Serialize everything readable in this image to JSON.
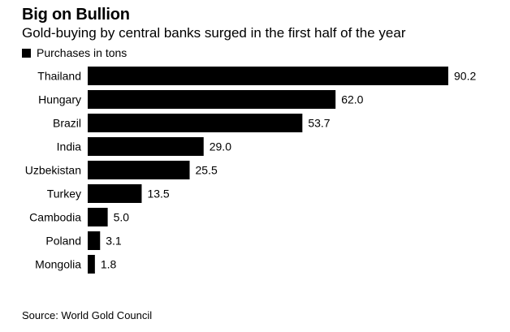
{
  "title": "Big on Bullion",
  "subtitle": "Gold-buying by central banks surged in the first half of the year",
  "legend_label": "Purchases in tons",
  "source": "Source: World Gold Council",
  "colors": {
    "bar": "#000000",
    "background": "#ffffff"
  },
  "chart_data": {
    "type": "bar",
    "orientation": "horizontal",
    "title": "Big on Bullion",
    "subtitle": "Gold-buying by central banks surged in the first half of the year",
    "categories": [
      "Thailand",
      "Hungary",
      "Brazil",
      "India",
      "Uzbekistan",
      "Turkey",
      "Cambodia",
      "Poland",
      "Mongolia"
    ],
    "series": [
      {
        "name": "Purchases in tons",
        "values": [
          90.2,
          62.0,
          53.7,
          29.0,
          25.5,
          13.5,
          5.0,
          3.1,
          1.8
        ]
      }
    ],
    "value_labels": [
      "90.2",
      "62.0",
      "53.7",
      "29.0",
      "25.5",
      "13.5",
      "5.0",
      "3.1",
      "1.8"
    ],
    "xlim": [
      0,
      90.2
    ],
    "grid": false,
    "legend_position": "top-left"
  }
}
